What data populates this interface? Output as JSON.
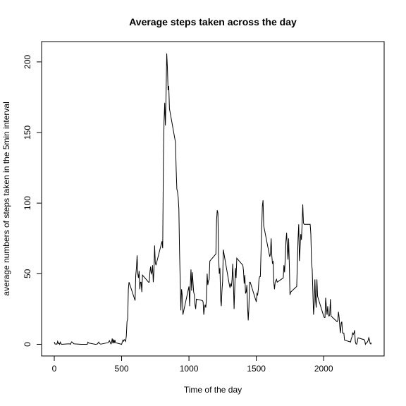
{
  "chart_data": {
    "type": "line",
    "title": "Average steps taken across the day",
    "x_label": "Time of the day",
    "y_label": "average numbers of steps taken in the 5min interval",
    "x": [
      0,
      5,
      10,
      15,
      20,
      25,
      30,
      35,
      40,
      45,
      50,
      55,
      100,
      115,
      120,
      125,
      130,
      145,
      150,
      200,
      215,
      230,
      245,
      250,
      255,
      305,
      320,
      330,
      335,
      345,
      350,
      400,
      410,
      420,
      425,
      430,
      435,
      440,
      445,
      450,
      455,
      500,
      505,
      510,
      515,
      520,
      525,
      530,
      535,
      540,
      545,
      550,
      555,
      600,
      605,
      610,
      615,
      620,
      625,
      630,
      635,
      640,
      645,
      650,
      655,
      700,
      705,
      710,
      715,
      720,
      725,
      730,
      735,
      740,
      745,
      750,
      755,
      800,
      805,
      810,
      815,
      820,
      825,
      830,
      835,
      840,
      845,
      850,
      855,
      900,
      905,
      910,
      915,
      920,
      925,
      930,
      935,
      940,
      945,
      950,
      955,
      1000,
      1005,
      1010,
      1015,
      1020,
      1025,
      1030,
      1035,
      1040,
      1045,
      1050,
      1055,
      1100,
      1105,
      1110,
      1115,
      1120,
      1125,
      1130,
      1135,
      1140,
      1145,
      1150,
      1155,
      1200,
      1205,
      1210,
      1215,
      1220,
      1225,
      1230,
      1235,
      1240,
      1245,
      1250,
      1255,
      1300,
      1305,
      1310,
      1315,
      1320,
      1325,
      1330,
      1335,
      1340,
      1345,
      1350,
      1355,
      1400,
      1405,
      1410,
      1415,
      1420,
      1425,
      1430,
      1435,
      1440,
      1445,
      1450,
      1455,
      1500,
      1505,
      1510,
      1515,
      1520,
      1525,
      1530,
      1535,
      1540,
      1545,
      1550,
      1555,
      1600,
      1605,
      1610,
      1615,
      1620,
      1625,
      1630,
      1635,
      1640,
      1645,
      1650,
      1655,
      1700,
      1705,
      1710,
      1715,
      1720,
      1725,
      1730,
      1735,
      1740,
      1745,
      1750,
      1755,
      1800,
      1805,
      1810,
      1815,
      1820,
      1825,
      1830,
      1835,
      1840,
      1845,
      1850,
      1855,
      1900,
      1905,
      1910,
      1915,
      1920,
      1925,
      1930,
      1935,
      1940,
      1945,
      1950,
      1955,
      2000,
      2005,
      2010,
      2015,
      2020,
      2025,
      2030,
      2035,
      2040,
      2045,
      2050,
      2055,
      2100,
      2105,
      2110,
      2115,
      2120,
      2125,
      2130,
      2135,
      2140,
      2145,
      2150,
      2155,
      2200,
      2205,
      2210,
      2215,
      2220,
      2225,
      2230,
      2235,
      2240,
      2245,
      2250,
      2255,
      2300,
      2305,
      2310,
      2315,
      2320,
      2325,
      2330,
      2335,
      2340,
      2345,
      2350,
      2355
    ],
    "series": [
      {
        "name": "steps",
        "color": "#000000",
        "values": [
          1.7,
          0.3,
          0.1,
          0.2,
          0.1,
          2.1,
          0.5,
          0.9,
          0,
          1.5,
          0.4,
          0,
          0.3,
          0.3,
          0,
          1.1,
          1.8,
          0.4,
          0.3,
          0,
          0,
          0,
          0,
          1.5,
          0.9,
          0,
          0.2,
          1.6,
          0.6,
          0.1,
          0.2,
          1.2,
          2.6,
          0.3,
          0.9,
          4.1,
          0.7,
          3.5,
          0.8,
          3.1,
          1.1,
          0,
          1.6,
          3,
          2.2,
          3.3,
          3,
          2.1,
          6,
          16,
          18,
          39,
          44,
          31,
          49,
          54,
          63,
          50,
          47,
          52,
          39,
          44,
          44,
          37,
          49,
          44,
          44,
          51,
          55,
          50,
          51,
          56,
          44,
          52,
          70,
          58,
          56,
          73,
          68,
          129,
          158,
          171,
          155,
          177,
          206,
          196,
          180,
          183,
          167,
          143,
          124,
          110,
          108,
          104,
          96,
          66,
          45,
          24,
          39,
          35,
          21,
          41,
          27,
          42,
          53,
          38,
          51,
          44,
          37,
          35,
          28,
          25,
          32,
          31,
          30,
          21,
          26,
          28,
          26,
          33,
          50,
          42,
          45,
          46,
          59,
          64,
          88,
          95,
          93,
          63,
          50,
          54,
          32,
          27,
          38,
          45,
          67,
          42,
          40,
          43,
          41,
          46,
          57,
          43,
          25,
          40,
          54,
          47,
          61,
          56,
          52,
          43,
          49,
          36,
          37,
          42,
          27,
          17,
          26,
          44,
          44,
          30,
          36,
          35,
          39,
          46,
          48,
          48,
          65,
          82,
          98,
          102,
          84,
          62,
          64,
          75,
          63,
          57,
          59,
          44,
          39,
          44,
          45,
          46,
          44,
          47,
          56,
          51,
          61,
          73,
          79,
          69,
          60,
          75,
          57,
          35,
          37,
          41,
          58,
          75,
          85,
          59,
          68,
          78,
          74,
          85,
          99,
          86,
          85,
          85,
          78,
          58,
          53,
          37,
          21,
          28,
          46,
          31,
          26,
          46,
          34,
          20,
          19,
          19,
          33,
          27,
          21,
          27,
          21,
          20,
          21,
          32,
          20,
          16,
          17,
          23,
          19,
          12,
          8,
          15,
          16,
          8,
          8,
          8,
          3,
          1.6,
          4,
          5,
          8,
          7,
          8,
          10,
          2,
          0.3,
          0.1,
          1.6,
          4.6,
          3.3,
          2.8,
          0,
          0.8,
          1,
          1.6,
          2.6,
          4.7,
          3.3,
          0.6,
          0.2,
          1.1
        ]
      }
    ],
    "xlim": [
      -94.2,
      2449.2
    ],
    "xticks": [
      0,
      500,
      1000,
      1500,
      2000
    ],
    "ylim": [
      -8.25,
      214.4
    ],
    "yticks": [
      0,
      50,
      100,
      150,
      200
    ]
  }
}
